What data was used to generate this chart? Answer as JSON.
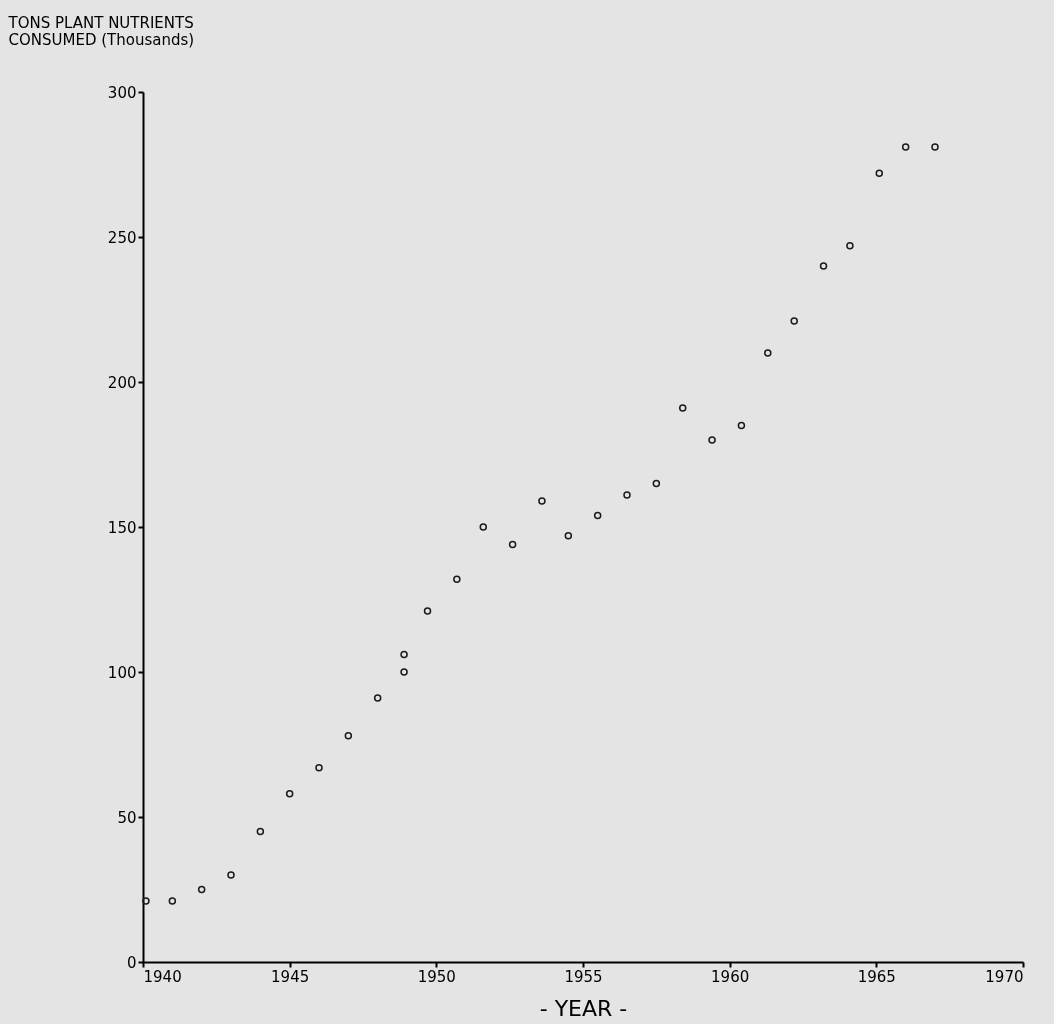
{
  "chart_data": {
    "type": "scatter",
    "xlabel": "- YEAR -",
    "ylabel": "TONS PLANT NUTRIENTS\nCONSUMED (Thousands)",
    "x": [
      1940.1,
      1941,
      1942,
      1943,
      1944,
      1945,
      1946,
      1947,
      1948,
      1948.9,
      1948.9,
      1949.7,
      1950.7,
      1951.6,
      1952.6,
      1953.6,
      1954.5,
      1955.5,
      1956.5,
      1957.5,
      1958.4,
      1959.4,
      1960.4,
      1961.3,
      1962.2,
      1963.2,
      1964.1,
      1965.1,
      1966,
      1967
    ],
    "series": [
      {
        "color": "#1a1a1a",
        "values": [
          21,
          21,
          25,
          30,
          45,
          58,
          67,
          78,
          91,
          100,
          106,
          121,
          132,
          150,
          144,
          159,
          147,
          154,
          161,
          165,
          191,
          180,
          185,
          210,
          221,
          240,
          247,
          272,
          281,
          281
        ]
      }
    ],
    "xlim": [
      1940,
      1970
    ],
    "ylim": [
      0,
      300
    ],
    "xticks": [
      1940,
      1945,
      1950,
      1955,
      1960,
      1965,
      1970
    ],
    "yticks": [
      0,
      50,
      100,
      150,
      200,
      250,
      300
    ],
    "grid": false,
    "legend": false,
    "marker": "circle"
  }
}
